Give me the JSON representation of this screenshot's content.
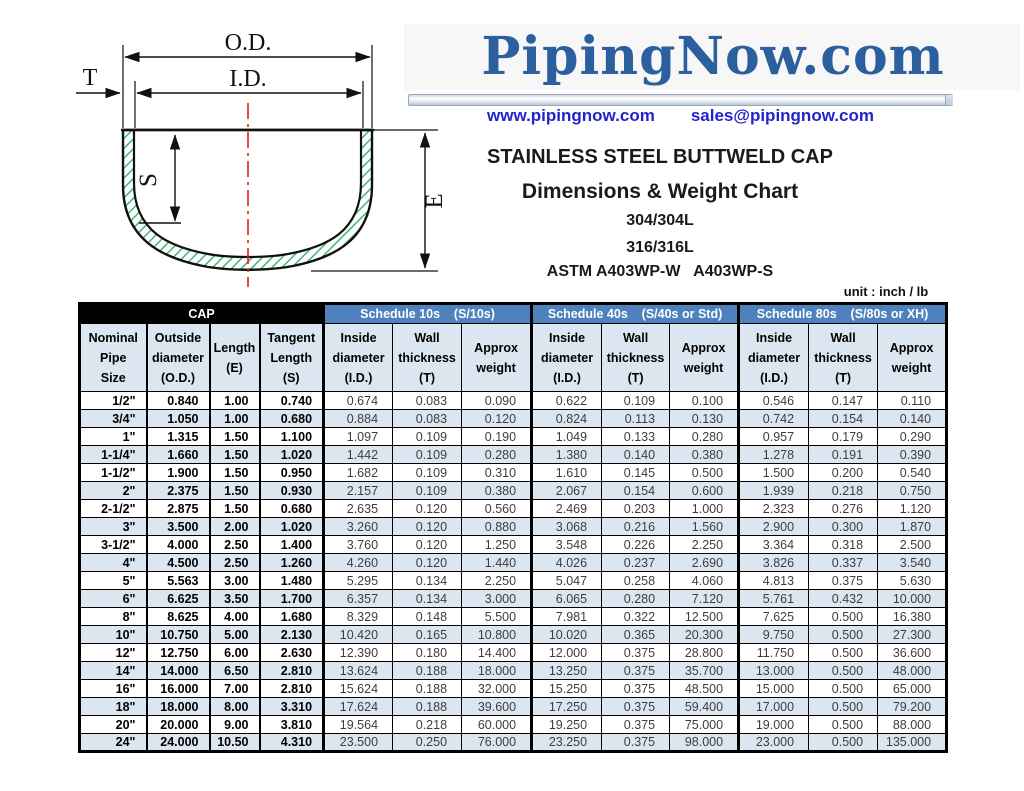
{
  "logo": {
    "text": "PipingNow.com",
    "website": "www.pipingnow.com",
    "email": "sales@pipingnow.com"
  },
  "title": {
    "line1": "STAINLESS STEEL BUTTWELD CAP",
    "line2": "Dimensions & Weight Chart",
    "line3": "304/304L",
    "line4": "316/316L",
    "line5": "ASTM A403WP-W   A403WP-S",
    "unit_note": "unit : inch / lb"
  },
  "diagram": {
    "labels": {
      "od": "O.D.",
      "id": "I.D.",
      "t": "T",
      "s": "S",
      "e": "E"
    }
  },
  "colors": {
    "logo_blue": "#2b5f9e",
    "link_blue": "#2323cc",
    "schedule_header_blue": "#4f81bd",
    "row_stripe_blue": "#dce6f1",
    "cap_group_black": "#000000",
    "hatch_green": "#3cb878",
    "centerline_red": "#e02020"
  },
  "table": {
    "groups": [
      {
        "label": "CAP",
        "span": 4
      },
      {
        "label": "Schedule 10s    (S/10s)",
        "span": 3
      },
      {
        "label": "Schedule 40s    (S/40s or Std)",
        "span": 3
      },
      {
        "label": "Schedule 80s    (S/80s or XH)",
        "span": 3
      }
    ],
    "columns": [
      "Nominal\nPipe\nSize",
      "Outside\ndiameter\n(O.D.)",
      "Length\n(E)",
      "Tangent\nLength\n(S)",
      "Inside\ndiameter\n(I.D.)",
      "Wall\nthickness\n(T)",
      "Approx\nweight",
      "Inside\ndiameter\n(I.D.)",
      "Wall\nthickness\n(T)",
      "Approx\nweight",
      "Inside\ndiameter\n(I.D.)",
      "Wall\nthickness\n(T)",
      "Approx\nweight"
    ],
    "rows": [
      [
        "1/2\"",
        "0.840",
        "1.00",
        "0.740",
        "0.674",
        "0.083",
        "0.090",
        "0.622",
        "0.109",
        "0.100",
        "0.546",
        "0.147",
        "0.110"
      ],
      [
        "3/4\"",
        "1.050",
        "1.00",
        "0.680",
        "0.884",
        "0.083",
        "0.120",
        "0.824",
        "0.113",
        "0.130",
        "0.742",
        "0.154",
        "0.140"
      ],
      [
        "1\"",
        "1.315",
        "1.50",
        "1.100",
        "1.097",
        "0.109",
        "0.190",
        "1.049",
        "0.133",
        "0.280",
        "0.957",
        "0.179",
        "0.290"
      ],
      [
        "1-1/4\"",
        "1.660",
        "1.50",
        "1.020",
        "1.442",
        "0.109",
        "0.280",
        "1.380",
        "0.140",
        "0.380",
        "1.278",
        "0.191",
        "0.390"
      ],
      [
        "1-1/2\"",
        "1.900",
        "1.50",
        "0.950",
        "1.682",
        "0.109",
        "0.310",
        "1.610",
        "0.145",
        "0.500",
        "1.500",
        "0.200",
        "0.540"
      ],
      [
        "2\"",
        "2.375",
        "1.50",
        "0.930",
        "2.157",
        "0.109",
        "0.380",
        "2.067",
        "0.154",
        "0.600",
        "1.939",
        "0.218",
        "0.750"
      ],
      [
        "2-1/2\"",
        "2.875",
        "1.50",
        "0.680",
        "2.635",
        "0.120",
        "0.560",
        "2.469",
        "0.203",
        "1.000",
        "2.323",
        "0.276",
        "1.120"
      ],
      [
        "3\"",
        "3.500",
        "2.00",
        "1.020",
        "3.260",
        "0.120",
        "0.880",
        "3.068",
        "0.216",
        "1.560",
        "2.900",
        "0.300",
        "1.870"
      ],
      [
        "3-1/2\"",
        "4.000",
        "2.50",
        "1.400",
        "3.760",
        "0.120",
        "1.250",
        "3.548",
        "0.226",
        "2.250",
        "3.364",
        "0.318",
        "2.500"
      ],
      [
        "4\"",
        "4.500",
        "2.50",
        "1.260",
        "4.260",
        "0.120",
        "1.440",
        "4.026",
        "0.237",
        "2.690",
        "3.826",
        "0.337",
        "3.540"
      ],
      [
        "5\"",
        "5.563",
        "3.00",
        "1.480",
        "5.295",
        "0.134",
        "2.250",
        "5.047",
        "0.258",
        "4.060",
        "4.813",
        "0.375",
        "5.630"
      ],
      [
        "6\"",
        "6.625",
        "3.50",
        "1.700",
        "6.357",
        "0.134",
        "3.000",
        "6.065",
        "0.280",
        "7.120",
        "5.761",
        "0.432",
        "10.000"
      ],
      [
        "8\"",
        "8.625",
        "4.00",
        "1.680",
        "8.329",
        "0.148",
        "5.500",
        "7.981",
        "0.322",
        "12.500",
        "7.625",
        "0.500",
        "16.380"
      ],
      [
        "10\"",
        "10.750",
        "5.00",
        "2.130",
        "10.420",
        "0.165",
        "10.800",
        "10.020",
        "0.365",
        "20.300",
        "9.750",
        "0.500",
        "27.300"
      ],
      [
        "12\"",
        "12.750",
        "6.00",
        "2.630",
        "12.390",
        "0.180",
        "14.400",
        "12.000",
        "0.375",
        "28.800",
        "11.750",
        "0.500",
        "36.600"
      ],
      [
        "14\"",
        "14.000",
        "6.50",
        "2.810",
        "13.624",
        "0.188",
        "18.000",
        "13.250",
        "0.375",
        "35.700",
        "13.000",
        "0.500",
        "48.000"
      ],
      [
        "16\"",
        "16.000",
        "7.00",
        "2.810",
        "15.624",
        "0.188",
        "32.000",
        "15.250",
        "0.375",
        "48.500",
        "15.000",
        "0.500",
        "65.000"
      ],
      [
        "18\"",
        "18.000",
        "8.00",
        "3.310",
        "17.624",
        "0.188",
        "39.600",
        "17.250",
        "0.375",
        "59.400",
        "17.000",
        "0.500",
        "79.200"
      ],
      [
        "20\"",
        "20.000",
        "9.00",
        "3.810",
        "19.564",
        "0.218",
        "60.000",
        "19.250",
        "0.375",
        "75.000",
        "19.000",
        "0.500",
        "88.000"
      ],
      [
        "24\"",
        "24.000",
        "10.50",
        "4.310",
        "23.500",
        "0.250",
        "76.000",
        "23.250",
        "0.375",
        "98.000",
        "23.000",
        "0.500",
        "135.000"
      ]
    ]
  }
}
